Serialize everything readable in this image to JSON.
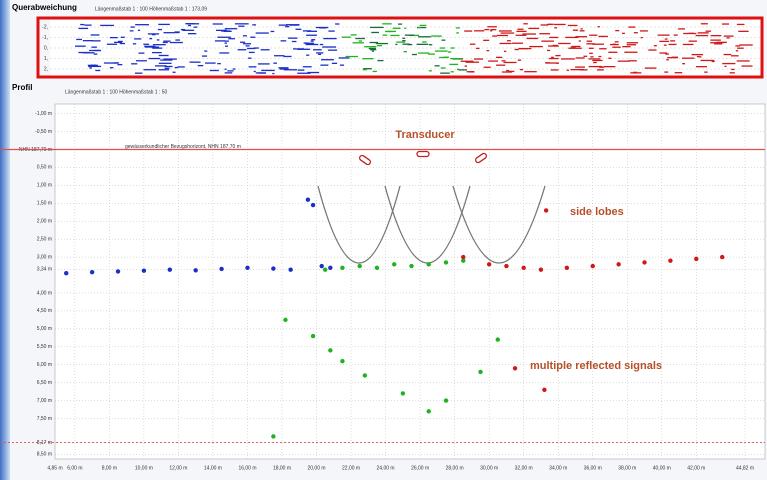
{
  "top_panel": {
    "title": "Querabweichung",
    "scale": "Längenmaßstab 1 : 100     Höhenmaßstab 1 : 173,09",
    "ytick_labels": [
      "-2,",
      "-1,",
      "0,",
      "1,",
      "2,"
    ]
  },
  "chart_data": {
    "type": "scatter",
    "title": "Profil",
    "subtitle": "Längenmaßstab 1 : 100     Höhenmaßstab 1 : 50",
    "reference_label": "gewässerkundlicher Bezugshorizont, NHN 187,70 m",
    "annotations": [
      "Transducer",
      "side lobes",
      "multiple reflected signals"
    ],
    "xlim": [
      4.85,
      44.82
    ],
    "ylim": [
      -1.1,
      8.6
    ],
    "y_inverted": true,
    "grid": true,
    "xticks": [
      {
        "value": 4.85,
        "label": "4,85 m"
      },
      {
        "value": 6,
        "label": "6,00 m"
      },
      {
        "value": 8,
        "label": "8,00 m"
      },
      {
        "value": 10,
        "label": "10,00 m"
      },
      {
        "value": 12,
        "label": "12,00 m"
      },
      {
        "value": 14,
        "label": "14,00 m"
      },
      {
        "value": 16,
        "label": "16,00 m"
      },
      {
        "value": 18,
        "label": "18,00 m"
      },
      {
        "value": 20,
        "label": "20,00 m"
      },
      {
        "value": 22,
        "label": "22,00 m"
      },
      {
        "value": 24,
        "label": "24,00 m"
      },
      {
        "value": 26,
        "label": "26,00 m"
      },
      {
        "value": 28,
        "label": "28,00 m"
      },
      {
        "value": 30,
        "label": "30,00 m"
      },
      {
        "value": 32,
        "label": "32,00 m"
      },
      {
        "value": 34,
        "label": "34,00 m"
      },
      {
        "value": 36,
        "label": "36,00 m"
      },
      {
        "value": 38,
        "label": "38,00 m"
      },
      {
        "value": 40,
        "label": "40,00 m"
      },
      {
        "value": 42,
        "label": "42,00 m"
      },
      {
        "value": 44.82,
        "label": "44,82 m"
      }
    ],
    "yticks": [
      {
        "value": -1,
        "label": "-1,00 m"
      },
      {
        "value": -0.5,
        "label": "-0,50 m"
      },
      {
        "value": 0,
        "label": "NHN 187,70 m"
      },
      {
        "value": 0.5,
        "label": "0,50 m"
      },
      {
        "value": 1,
        "label": "1,00 m"
      },
      {
        "value": 1.5,
        "label": "1,50 m"
      },
      {
        "value": 2,
        "label": "2,00 m"
      },
      {
        "value": 2.5,
        "label": "2,50 m"
      },
      {
        "value": 3,
        "label": "3,00 m"
      },
      {
        "value": 3.34,
        "label": "3,34 m"
      },
      {
        "value": 4,
        "label": "4,00 m"
      },
      {
        "value": 4.5,
        "label": "4,50 m"
      },
      {
        "value": 5,
        "label": "5,00 m"
      },
      {
        "value": 5.5,
        "label": "5,50 m"
      },
      {
        "value": 6,
        "label": "6,00 m"
      },
      {
        "value": 6.5,
        "label": "6,50 m"
      },
      {
        "value": 7,
        "label": "7,00 m"
      },
      {
        "value": 7.5,
        "label": "7,50 m"
      },
      {
        "value": 8.17,
        "label": "8,17 m"
      },
      {
        "value": 8.5,
        "label": "8,50 m"
      }
    ],
    "series": [
      {
        "color": "#1a2fc8",
        "x": [
          5.5,
          7,
          8.5,
          10,
          11.5,
          13,
          14.5,
          16,
          17.5,
          18.5,
          19.5,
          19.8,
          20.3,
          20.8
        ],
        "values": [
          3.45,
          3.42,
          3.4,
          3.38,
          3.35,
          3.37,
          3.33,
          3.3,
          3.32,
          3.35,
          1.4,
          1.55,
          3.25,
          3.3
        ]
      },
      {
        "color": "#1fb41f",
        "x": [
          20.5,
          21.5,
          22.5,
          23.5,
          24.5,
          25.5,
          26.5,
          27.5,
          28.5,
          18.2,
          19.8,
          20.8,
          21.5,
          22.8,
          25,
          26.5,
          27.5,
          29.5,
          30.5,
          17.5
        ],
        "values": [
          3.35,
          3.3,
          3.25,
          3.3,
          3.2,
          3.25,
          3.2,
          3.15,
          3.1,
          4.75,
          5.2,
          5.6,
          5.9,
          6.3,
          6.8,
          7.3,
          7.0,
          6.2,
          5.3,
          8.0
        ]
      },
      {
        "color": "#d01818",
        "x": [
          28.5,
          30,
          31,
          32,
          33,
          34.5,
          36,
          37.5,
          39,
          40.5,
          42,
          43.5,
          33.3,
          33.2,
          31.5
        ],
        "values": [
          3.0,
          3.2,
          3.25,
          3.3,
          3.35,
          3.3,
          3.25,
          3.2,
          3.15,
          3.1,
          3.05,
          3.0,
          1.7,
          6.7,
          6.1
        ]
      }
    ]
  }
}
